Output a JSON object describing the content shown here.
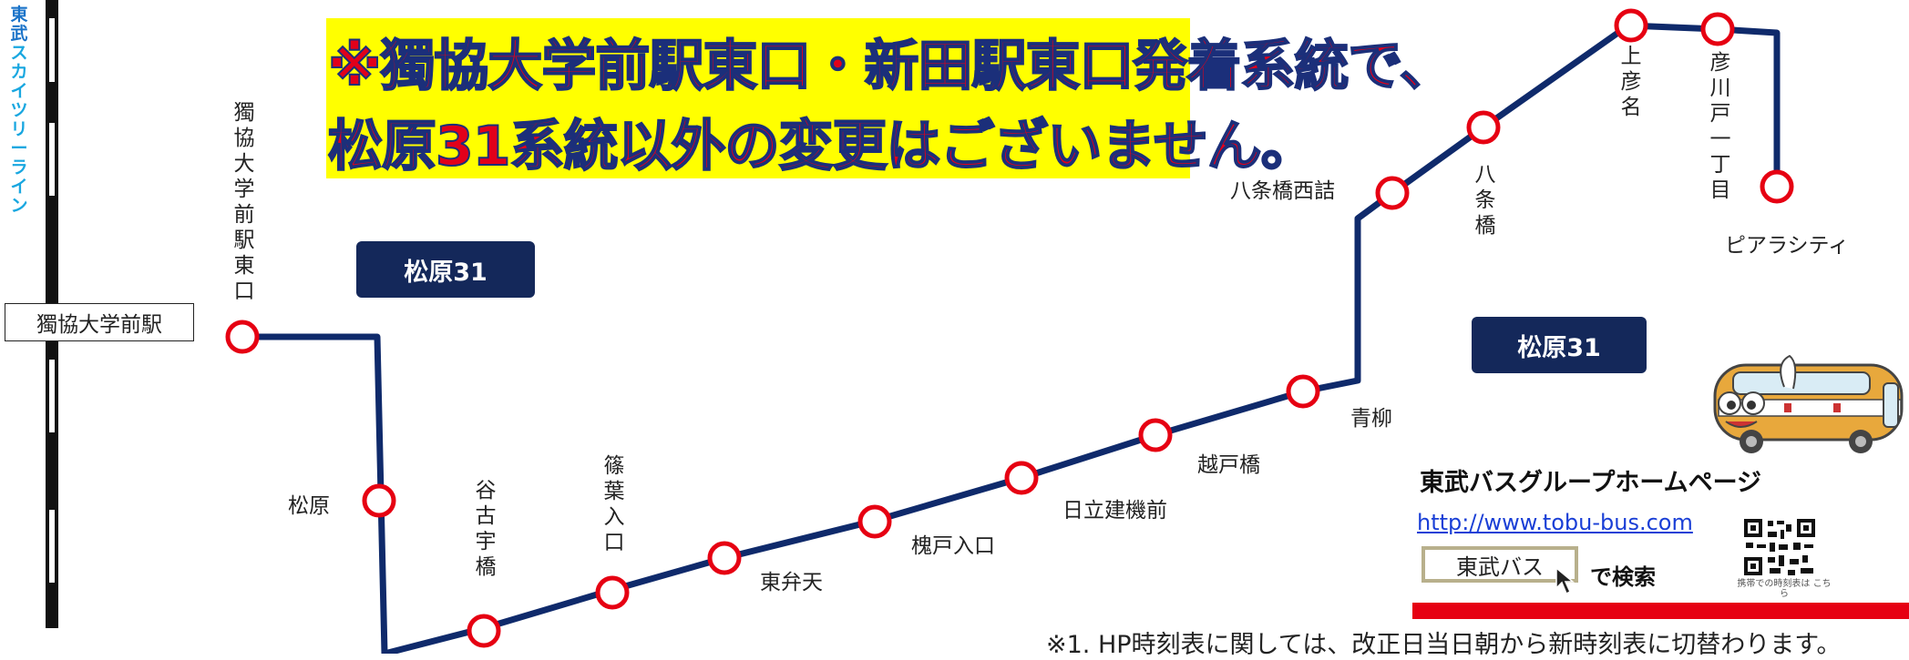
{
  "rail": {
    "line_label_chars": [
      "東",
      "武",
      "ス",
      "カ",
      "イ",
      "ツ",
      "リ",
      "ー",
      "ラ",
      "イ",
      "ン"
    ],
    "station": "獨協大学前駅",
    "colors": {
      "label": "#19a7e0",
      "track": "#111111"
    }
  },
  "notice": {
    "line1": "※獨協大学前駅東口・新田駅東口発着系統で、",
    "line2": "松原31系統以外の変更はございません。",
    "colors": {
      "background": "#ffff00",
      "text": "#e2001a",
      "outline": "#1b2f7a"
    }
  },
  "route": {
    "badge_label": "松原31",
    "line_color": "#0f2a6b",
    "stop_color": "#e60012",
    "stops": {
      "dokkyo_east": "獨協大学前駅東口",
      "matsubara": "松原",
      "yakoubashi": "谷古宇橋",
      "shinoha_iriguchi": "篠葉入口",
      "higashi_benten": "東弁天",
      "enjudo_iriguchi": "槐戸入口",
      "hitachi_kenki": "日立建機前",
      "koshidobashi": "越戸橋",
      "aoyagi": "青柳",
      "hachijobashi_nishizume": "八条橋西詰",
      "hachijobashi": "八条橋",
      "kami_hikona": "上彦名",
      "hikokawado_1": "彦川戸一丁目",
      "pier_city": "ピアラシティ"
    }
  },
  "homepage": {
    "title": "東武バスグループホームページ",
    "url": "http://www.tobu-bus.com",
    "search_term": "東武バス",
    "search_suffix": "で検索",
    "qr_caption": "携帯での時刻表は こちら",
    "icons": [
      "bus-mascot-icon",
      "qr-code-icon",
      "cursor-icon"
    ]
  },
  "footnote": "※1. HP時刻表に関しては、改正日当日朝から新時刻表に切替わります。"
}
